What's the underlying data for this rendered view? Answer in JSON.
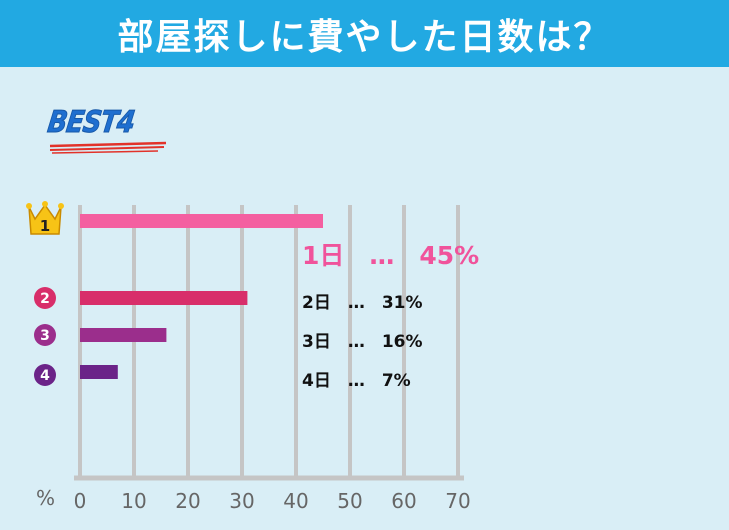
{
  "title": "部屋探しに費やした日数は？",
  "badge": {
    "text": "BEST4",
    "color": "#1f6fd0"
  },
  "colors": {
    "header": "#22a9e2",
    "background": "#d9eef6",
    "grid": "#c5c5c5"
  },
  "chart_data": {
    "type": "bar",
    "orientation": "horizontal",
    "categories": [
      "1日",
      "2日",
      "3日",
      "4日"
    ],
    "values": [
      45,
      31,
      16,
      7
    ],
    "ranks": [
      "1",
      "2",
      "3",
      "4"
    ],
    "labels": [
      "1日　…　45%",
      "2日　…　31%",
      "3日　…　16%",
      "4日　…　7%"
    ],
    "bar_colors": [
      "#f45fa0",
      "#d82e6a",
      "#9b2e8c",
      "#6b2388"
    ],
    "rank_icons": [
      "crown-icon",
      "circle-number-icon",
      "circle-number-icon",
      "circle-number-icon"
    ],
    "x_unit": "%",
    "x_ticks": [
      0,
      10,
      20,
      30,
      40,
      50,
      60,
      70
    ],
    "xlim": [
      0,
      70
    ],
    "grid": true
  }
}
